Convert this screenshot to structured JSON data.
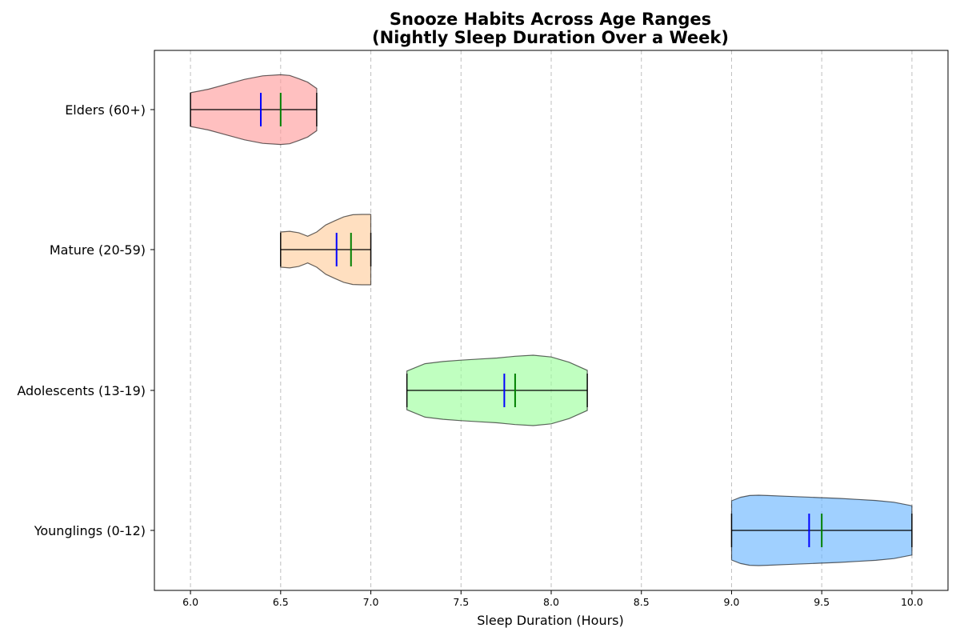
{
  "chart_data": {
    "type": "violin",
    "orientation": "horizontal",
    "title_line1": "Snooze Habits Across Age Ranges",
    "title_line2": "(Nightly Sleep Duration Over a Week)",
    "xlabel": "Sleep Duration (Hours)",
    "xlim": [
      5.8,
      10.2
    ],
    "xticks": [
      "6.0",
      "6.5",
      "7.0",
      "7.5",
      "8.0",
      "8.5",
      "9.0",
      "9.5",
      "10.0"
    ],
    "xgrid": true,
    "categories": [
      "Younglings (0-12)",
      "Adolescents (13-19)",
      "Mature (20-59)",
      "Elders (60+)"
    ],
    "series": [
      {
        "name": "Younglings (0-12)",
        "color": "#66b3ff",
        "min": 9.0,
        "max": 10.0,
        "mean": 9.43,
        "median": 9.5,
        "density_x": [
          9.0,
          9.05,
          9.1,
          9.15,
          9.2,
          9.3,
          9.4,
          9.5,
          9.6,
          9.7,
          9.8,
          9.9,
          10.0
        ],
        "density_w": [
          0.84,
          0.94,
          0.99,
          1.0,
          0.99,
          0.97,
          0.95,
          0.93,
          0.91,
          0.88,
          0.85,
          0.8,
          0.7
        ]
      },
      {
        "name": "Adolescents (13-19)",
        "color": "#99ff99",
        "min": 7.2,
        "max": 8.2,
        "mean": 7.74,
        "median": 7.8,
        "density_x": [
          7.2,
          7.3,
          7.4,
          7.5,
          7.6,
          7.7,
          7.8,
          7.9,
          8.0,
          8.1,
          8.2
        ],
        "density_w": [
          0.55,
          0.76,
          0.82,
          0.86,
          0.89,
          0.92,
          0.97,
          1.0,
          0.95,
          0.8,
          0.57
        ]
      },
      {
        "name": "Mature (20-59)",
        "color": "#ffcc99",
        "min": 6.5,
        "max": 7.0,
        "mean": 6.81,
        "median": 6.89,
        "density_x": [
          6.5,
          6.55,
          6.6,
          6.65,
          6.7,
          6.75,
          6.8,
          6.85,
          6.9,
          6.95,
          7.0
        ],
        "density_w": [
          0.5,
          0.52,
          0.48,
          0.38,
          0.5,
          0.7,
          0.82,
          0.93,
          0.99,
          1.0,
          1.0
        ]
      },
      {
        "name": "Elders (60+)",
        "color": "#ff9999",
        "min": 6.0,
        "max": 6.7,
        "mean": 6.39,
        "median": 6.5,
        "density_x": [
          6.0,
          6.1,
          6.2,
          6.3,
          6.4,
          6.5,
          6.55,
          6.6,
          6.65,
          6.7
        ],
        "density_w": [
          0.48,
          0.58,
          0.72,
          0.86,
          0.96,
          0.99,
          0.97,
          0.88,
          0.78,
          0.6
        ]
      }
    ],
    "mean_color": "#0000ff",
    "median_color": "#008000",
    "extrema_color": "#000000"
  }
}
